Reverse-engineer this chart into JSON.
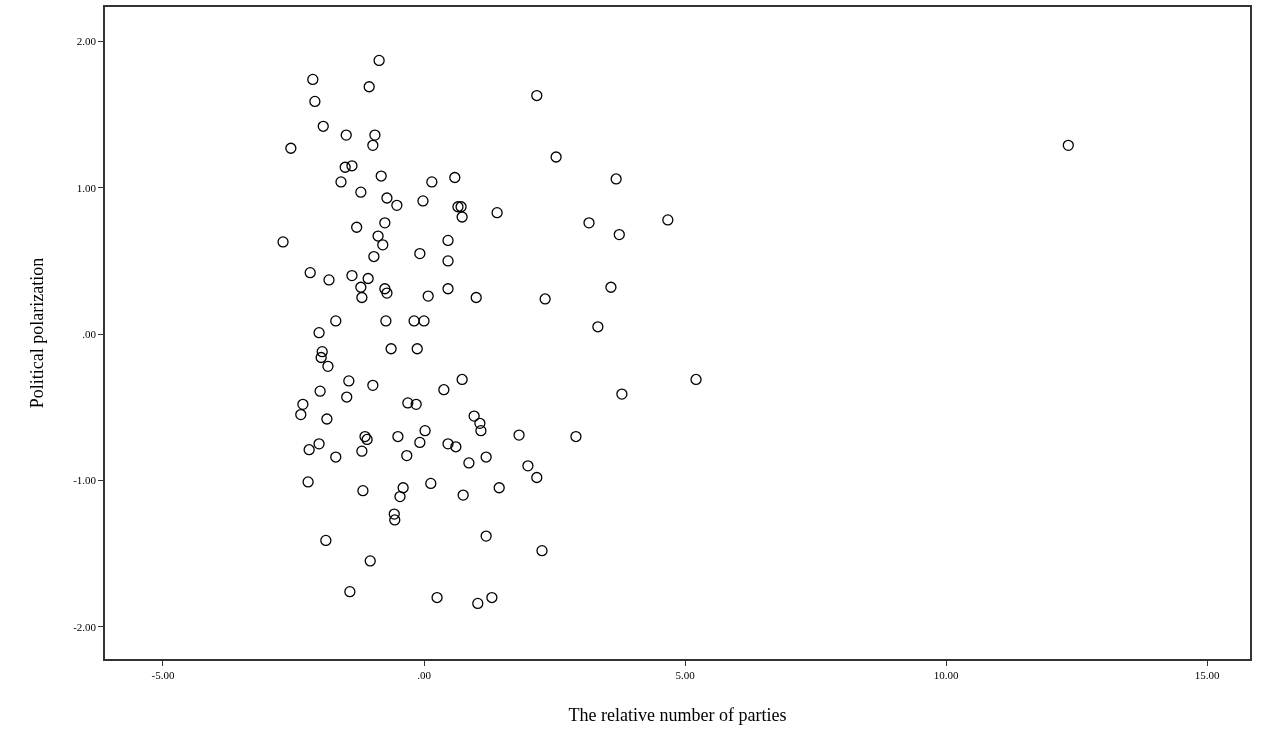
{
  "chart_data": {
    "type": "scatter",
    "xlabel": "The relative number of parties",
    "ylabel": "Political polarization",
    "xlim": [
      -6.11,
      15.82
    ],
    "ylim": [
      -2.22,
      2.235
    ],
    "xticks": [
      {
        "value": -5,
        "label": "-5.00"
      },
      {
        "value": 0,
        "label": ".00"
      },
      {
        "value": 5,
        "label": "5.00"
      },
      {
        "value": 10,
        "label": "10.00"
      },
      {
        "value": 15,
        "label": "15.00"
      }
    ],
    "yticks": [
      {
        "value": -2,
        "label": "-2.00"
      },
      {
        "value": -1,
        "label": "-1.00"
      },
      {
        "value": 0,
        "label": ".00"
      },
      {
        "value": 1,
        "label": "1.00"
      },
      {
        "value": 2,
        "label": "2.00"
      }
    ],
    "marker": "circle",
    "series": [
      {
        "color": "#000000",
        "x": [
          -0.86,
          -2.13,
          -2.09,
          -1.05,
          2.16,
          -1.93,
          -1.49,
          -0.94,
          -0.98,
          -2.55,
          2.53,
          12.34,
          -1.38,
          -1.51,
          -1.59,
          -0.82,
          0.15,
          0.59,
          3.68,
          -1.21,
          -0.71,
          -0.52,
          -0.02,
          0.65,
          0.71,
          0.73,
          1.4,
          3.16,
          4.67,
          -0.75,
          -1.29,
          -0.88,
          3.74,
          -2.7,
          -0.79,
          -0.96,
          -0.08,
          0.46,
          0.46,
          -2.18,
          -1.82,
          -1.38,
          -1.07,
          -1.21,
          -0.75,
          -0.71,
          -1.19,
          0.46,
          0.08,
          1.0,
          2.32,
          3.58,
          -1.69,
          -0.73,
          -0.19,
          0.0,
          3.33,
          -2.01,
          -1.95,
          -1.97,
          -1.84,
          -0.63,
          -0.13,
          -1.44,
          -0.98,
          -1.99,
          -1.48,
          0.38,
          0.73,
          5.21,
          3.79,
          -2.32,
          -2.36,
          -1.86,
          -0.31,
          -0.15,
          0.96,
          1.07,
          1.09,
          0.02,
          1.82,
          2.91,
          -1.13,
          -1.09,
          -0.5,
          -0.08,
          0.46,
          0.61,
          -2.01,
          -2.2,
          -1.19,
          -1.69,
          -0.33,
          0.86,
          1.19,
          1.99,
          2.16,
          -2.22,
          0.13,
          -0.4,
          -1.17,
          -0.46,
          0.75,
          1.44,
          -0.57,
          -0.56,
          -1.88,
          1.19,
          2.26,
          -1.03,
          -1.42,
          0.25,
          1.3,
          1.03
        ],
        "values": [
          1.87,
          1.74,
          1.59,
          1.69,
          1.63,
          1.42,
          1.36,
          1.36,
          1.29,
          1.27,
          1.21,
          1.29,
          1.15,
          1.14,
          1.04,
          1.08,
          1.04,
          1.07,
          1.06,
          0.97,
          0.93,
          0.88,
          0.91,
          0.87,
          0.87,
          0.8,
          0.83,
          0.76,
          0.78,
          0.76,
          0.73,
          0.67,
          0.68,
          0.63,
          0.61,
          0.53,
          0.55,
          0.64,
          0.5,
          0.42,
          0.37,
          0.4,
          0.38,
          0.32,
          0.31,
          0.28,
          0.25,
          0.31,
          0.26,
          0.25,
          0.24,
          0.32,
          0.09,
          0.09,
          0.09,
          0.09,
          0.05,
          0.01,
          -0.12,
          -0.16,
          -0.22,
          -0.1,
          -0.1,
          -0.32,
          -0.35,
          -0.39,
          -0.43,
          -0.38,
          -0.31,
          -0.31,
          -0.41,
          -0.48,
          -0.55,
          -0.58,
          -0.47,
          -0.48,
          -0.56,
          -0.61,
          -0.66,
          -0.66,
          -0.69,
          -0.7,
          -0.7,
          -0.72,
          -0.7,
          -0.74,
          -0.75,
          -0.77,
          -0.75,
          -0.79,
          -0.8,
          -0.84,
          -0.83,
          -0.88,
          -0.84,
          -0.9,
          -0.98,
          -1.01,
          -1.02,
          -1.05,
          -1.07,
          -1.11,
          -1.1,
          -1.05,
          -1.23,
          -1.27,
          -1.41,
          -1.38,
          -1.48,
          -1.55,
          -1.76,
          -1.8,
          -1.8,
          -1.84
        ]
      }
    ]
  }
}
